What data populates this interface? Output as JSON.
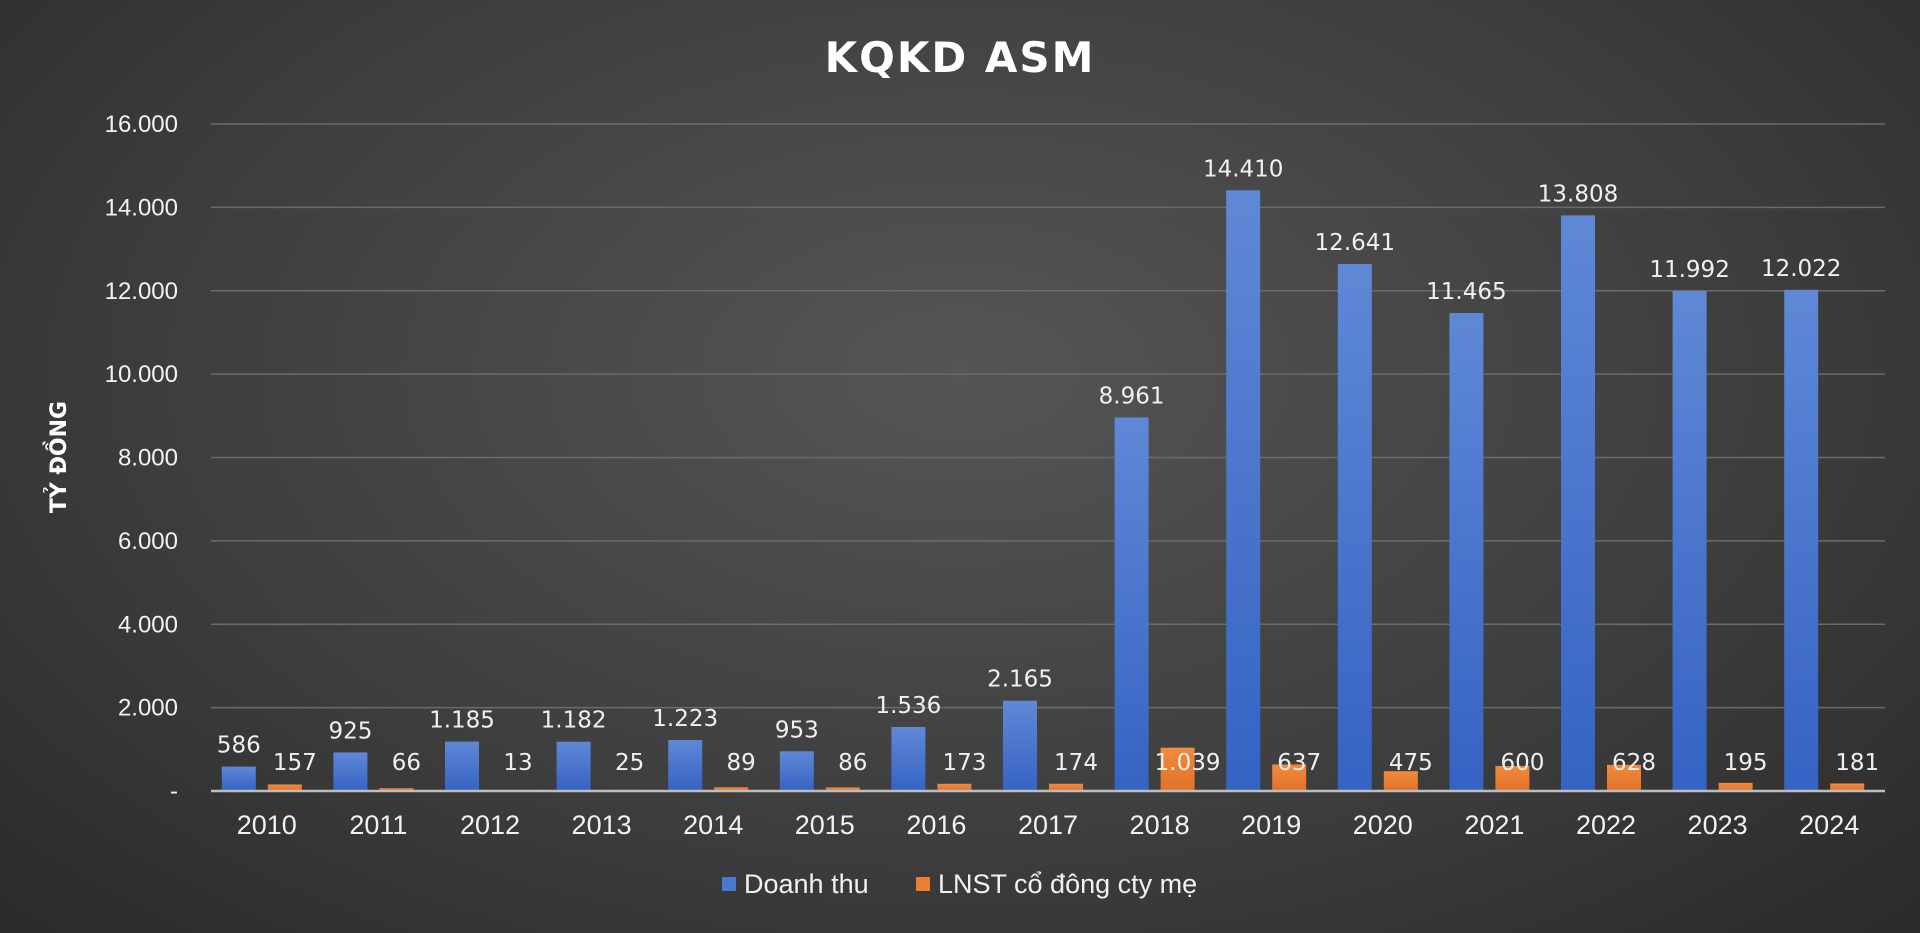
{
  "chart_data": {
    "type": "bar",
    "title": "KQKD ASM",
    "xlabel": "",
    "ylabel": "TỶ ĐỒNG",
    "categories": [
      "2010",
      "2011",
      "2012",
      "2013",
      "2014",
      "2015",
      "2016",
      "2017",
      "2018",
      "2019",
      "2020",
      "2021",
      "2022",
      "2023",
      "2024"
    ],
    "series": [
      {
        "name": "Doanh thu",
        "color": "#4a78d0",
        "values": [
          586,
          925,
          1185,
          1182,
          1223,
          953,
          1536,
          2165,
          8961,
          14410,
          12641,
          11465,
          13808,
          11992,
          12022
        ],
        "labels": [
          "586",
          "925",
          "1.185",
          "1.182",
          "1.223",
          "953",
          "1.536",
          "2.165",
          "8.961",
          "14.410",
          "12.641",
          "11.465",
          "13.808",
          "11.992",
          "12.022"
        ]
      },
      {
        "name": "LNST cổ đông cty mẹ",
        "color": "#ed7d31",
        "values": [
          157,
          66,
          13,
          25,
          89,
          86,
          173,
          174,
          1039,
          637,
          475,
          600,
          628,
          195,
          181
        ],
        "labels": [
          "157",
          "66",
          "13",
          "25",
          "89",
          "86",
          "173",
          "174",
          "1.039",
          "637",
          "475",
          "600",
          "628",
          "195",
          "181"
        ]
      }
    ],
    "ylim": [
      0,
      16000
    ],
    "yticks": [
      0,
      2000,
      4000,
      6000,
      8000,
      10000,
      12000,
      14000,
      16000
    ],
    "ytick_labels": [
      "-",
      "2.000",
      "4.000",
      "6.000",
      "8.000",
      "10.000",
      "12.000",
      "14.000",
      "16.000"
    ],
    "grid": true,
    "legend_position": "bottom"
  }
}
